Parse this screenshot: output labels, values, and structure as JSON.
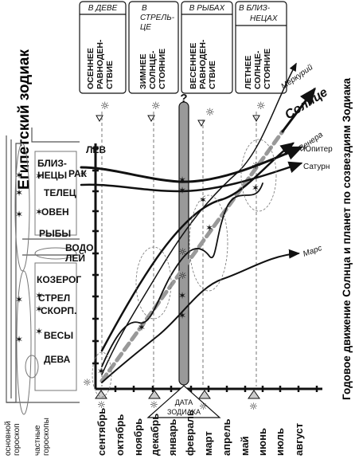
{
  "title_vertical": "Египетский зодиак",
  "caption_vertical": "Годовое движение Солнца и планет по созвездиям Зодиака",
  "zodiac_signs": [
    "ЛЕВ",
    "РАК",
    "БЛИЗ-",
    "НЕЦЫ",
    "ТЕЛЕЦ",
    "ОВЕН",
    "РЫБЫ",
    "ВОДО",
    "ЛЕЙ",
    "КОЗЕРОГ",
    "СТРЕЛ",
    "СКОРП.",
    "ВЕСЫ",
    "ДЕВА"
  ],
  "columns": [
    {
      "header": [
        "В ДЕВЕ"
      ],
      "box": [
        "ОСЕННЕЕ",
        "РАВНОДЕН-",
        "СТВИЕ"
      ]
    },
    {
      "header": [
        "В",
        "СТРЕЛЬ-",
        "ЦЕ"
      ],
      "box": [
        "ЗИМНЕЕ",
        "СОЛНЦЕ-",
        "СТОЯНИЕ"
      ]
    },
    {
      "header": [
        "В РЫБАХ"
      ],
      "box": [
        "ВЕСЕННЕЕ",
        "РАВНОДЕН-",
        "СТВИЕ"
      ]
    },
    {
      "header": [
        "В БЛИЗ-",
        "НЕЦАХ"
      ],
      "box": [
        "ЛЕТНЕЕ",
        "СОЛНЦЕ-",
        "СТОЯНИЕ"
      ]
    }
  ],
  "question_mark": "?",
  "zodiac_date": [
    "ДАТА",
    "ЗОДИАКА"
  ],
  "months": [
    "сентябрь",
    "октябрь",
    "ноябрь",
    "декабрь",
    "январь",
    "февраль",
    "март",
    "апрель",
    "май",
    "июнь",
    "июль",
    "август"
  ],
  "planets": {
    "mercury": "Меркурий",
    "sun": "Солнце",
    "venus": "Венера",
    "jupiter": "Юпитер",
    "saturn": "Сатурн",
    "mars": "Марс"
  },
  "left_bottom_labels": [
    "основной",
    "гороскоп",
    "частные",
    "гороскопы"
  ]
}
